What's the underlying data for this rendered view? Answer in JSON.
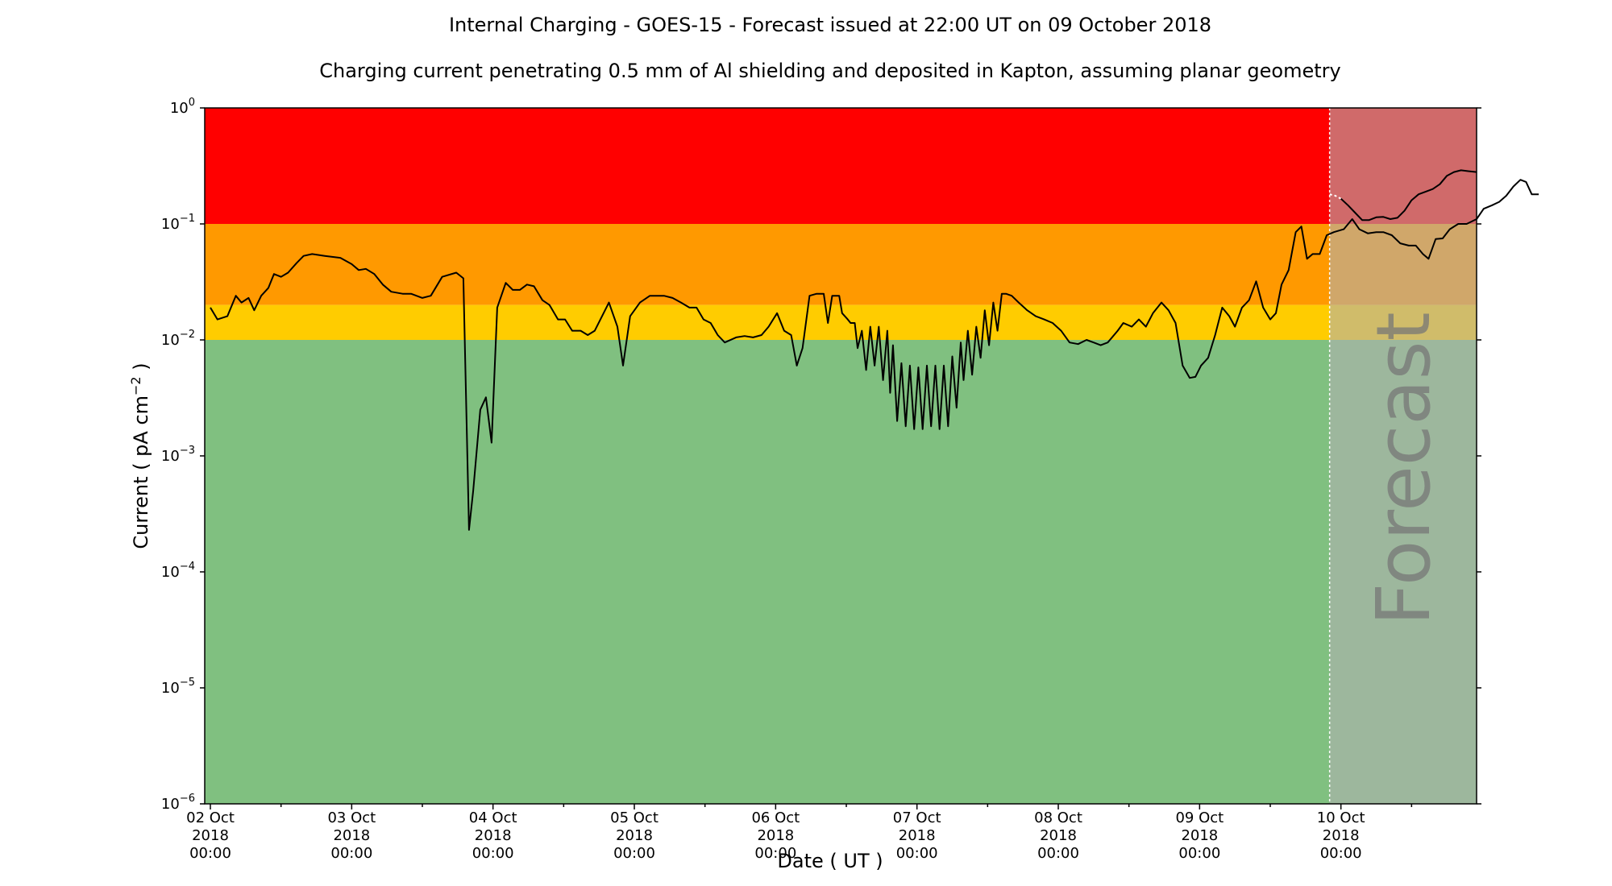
{
  "chart_data": {
    "type": "line",
    "title": "Internal Charging - GOES-15 - Forecast issued at 22:00 UT on 09 October 2018",
    "subtitle": "Charging current penetrating 0.5 mm of Al shielding and deposited in Kapton, assuming planar geometry",
    "xlabel": "Date ( UT )",
    "ylabel_main": "Current ( pA cm",
    "ylabel_exp": "−2",
    "ylabel_end": " )",
    "yscale": "log",
    "ylim": [
      1e-06,
      1
    ],
    "xlim_days": [
      -0.04,
      8.96
    ],
    "x_ticks": [
      {
        "day": 0,
        "line1": "02 Oct",
        "line2": "2018",
        "line3": "00:00"
      },
      {
        "day": 1,
        "line1": "03 Oct",
        "line2": "2018",
        "line3": "00:00"
      },
      {
        "day": 2,
        "line1": "04 Oct",
        "line2": "2018",
        "line3": "00:00"
      },
      {
        "day": 3,
        "line1": "05 Oct",
        "line2": "2018",
        "line3": "00:00"
      },
      {
        "day": 4,
        "line1": "06 Oct",
        "line2": "2018",
        "line3": "00:00"
      },
      {
        "day": 5,
        "line1": "07 Oct",
        "line2": "2018",
        "line3": "00:00"
      },
      {
        "day": 6,
        "line1": "08 Oct",
        "line2": "2018",
        "line3": "00:00"
      },
      {
        "day": 7,
        "line1": "09 Oct",
        "line2": "2018",
        "line3": "00:00"
      },
      {
        "day": 8,
        "line1": "10 Oct",
        "line2": "2018",
        "line3": "00:00"
      }
    ],
    "y_ticks": [
      {
        "value": 1,
        "exp": "0"
      },
      {
        "value": 0.1,
        "exp": "−1"
      },
      {
        "value": 0.01,
        "exp": "−2"
      },
      {
        "value": 0.001,
        "exp": "−3"
      },
      {
        "value": 0.0001,
        "exp": "−4"
      },
      {
        "value": 1e-05,
        "exp": "−5"
      },
      {
        "value": 1e-06,
        "exp": "−6"
      }
    ],
    "bands": [
      {
        "name": "red",
        "from": 0.1,
        "to": 1,
        "color": "#ff0000"
      },
      {
        "name": "orange",
        "from": 0.02,
        "to": 0.1,
        "color": "#ff9900"
      },
      {
        "name": "yellow",
        "from": 0.01,
        "to": 0.02,
        "color": "#ffcc00"
      },
      {
        "name": "green",
        "from": 1e-06,
        "to": 0.01,
        "color": "#80c080"
      }
    ],
    "forecast": {
      "start_day": 7.92,
      "label": "Forecast",
      "overlay_color": "#b0b0b0",
      "overlay_opacity": 0.6
    },
    "line_color": "#000000",
    "series": [
      {
        "values": [
          [
            0.0,
            0.019
          ],
          [
            0.05,
            0.015
          ],
          [
            0.12,
            0.016
          ],
          [
            0.18,
            0.024
          ],
          [
            0.22,
            0.021
          ],
          [
            0.27,
            0.023
          ],
          [
            0.31,
            0.018
          ],
          [
            0.36,
            0.024
          ],
          [
            0.41,
            0.028
          ],
          [
            0.45,
            0.037
          ],
          [
            0.5,
            0.035
          ],
          [
            0.55,
            0.038
          ],
          [
            0.61,
            0.046
          ],
          [
            0.66,
            0.053
          ],
          [
            0.72,
            0.055
          ],
          [
            0.81,
            0.053
          ],
          [
            0.92,
            0.051
          ],
          [
            1.0,
            0.045
          ],
          [
            1.05,
            0.04
          ],
          [
            1.1,
            0.041
          ],
          [
            1.16,
            0.037
          ],
          [
            1.22,
            0.03
          ],
          [
            1.28,
            0.026
          ],
          [
            1.36,
            0.025
          ],
          [
            1.42,
            0.025
          ],
          [
            1.5,
            0.023
          ],
          [
            1.56,
            0.024
          ],
          [
            1.64,
            0.035
          ],
          [
            1.74,
            0.038
          ],
          [
            1.79,
            0.034
          ],
          [
            1.83,
            0.00023
          ],
          [
            1.86,
            0.0005
          ],
          [
            1.91,
            0.0025
          ],
          [
            1.95,
            0.0032
          ],
          [
            1.99,
            0.0013
          ],
          [
            2.03,
            0.019
          ],
          [
            2.09,
            0.031
          ],
          [
            2.14,
            0.027
          ],
          [
            2.19,
            0.027
          ],
          [
            2.24,
            0.03
          ],
          [
            2.29,
            0.029
          ],
          [
            2.35,
            0.022
          ],
          [
            2.4,
            0.02
          ],
          [
            2.46,
            0.015
          ],
          [
            2.51,
            0.015
          ],
          [
            2.56,
            0.012
          ],
          [
            2.62,
            0.012
          ],
          [
            2.67,
            0.011
          ],
          [
            2.72,
            0.012
          ],
          [
            2.82,
            0.021
          ],
          [
            2.88,
            0.013
          ],
          [
            2.92,
            0.006
          ],
          [
            2.97,
            0.016
          ],
          [
            3.04,
            0.021
          ],
          [
            3.11,
            0.024
          ],
          [
            3.21,
            0.024
          ],
          [
            3.27,
            0.023
          ],
          [
            3.33,
            0.021
          ],
          [
            3.39,
            0.019
          ],
          [
            3.44,
            0.019
          ],
          [
            3.49,
            0.015
          ],
          [
            3.54,
            0.014
          ],
          [
            3.59,
            0.011
          ],
          [
            3.64,
            0.0095
          ],
          [
            3.72,
            0.0105
          ],
          [
            3.78,
            0.0108
          ],
          [
            3.84,
            0.0105
          ],
          [
            3.9,
            0.011
          ],
          [
            3.95,
            0.013
          ],
          [
            4.01,
            0.017
          ],
          [
            4.06,
            0.012
          ],
          [
            4.11,
            0.011
          ],
          [
            4.15,
            0.006
          ],
          [
            4.19,
            0.0085
          ],
          [
            4.24,
            0.024
          ],
          [
            4.29,
            0.025
          ],
          [
            4.34,
            0.025
          ],
          [
            4.37,
            0.014
          ],
          [
            4.4,
            0.024
          ],
          [
            4.45,
            0.024
          ],
          [
            4.47,
            0.017
          ],
          [
            4.51,
            0.015
          ],
          [
            4.53,
            0.014
          ],
          [
            4.56,
            0.014
          ],
          [
            4.58,
            0.0085
          ],
          [
            4.61,
            0.012
          ],
          [
            4.64,
            0.0055
          ],
          [
            4.67,
            0.013
          ],
          [
            4.7,
            0.006
          ],
          [
            4.73,
            0.013
          ],
          [
            4.76,
            0.0045
          ],
          [
            4.79,
            0.012
          ],
          [
            4.81,
            0.0035
          ],
          [
            4.83,
            0.009
          ],
          [
            4.86,
            0.002
          ],
          [
            4.89,
            0.0063
          ],
          [
            4.92,
            0.0018
          ],
          [
            4.95,
            0.006
          ],
          [
            4.98,
            0.0017
          ],
          [
            5.01,
            0.0058
          ],
          [
            5.04,
            0.0017
          ],
          [
            5.07,
            0.006
          ],
          [
            5.1,
            0.0018
          ],
          [
            5.13,
            0.006
          ],
          [
            5.16,
            0.0017
          ],
          [
            5.19,
            0.006
          ],
          [
            5.22,
            0.0018
          ],
          [
            5.25,
            0.0072
          ],
          [
            5.28,
            0.0026
          ],
          [
            5.31,
            0.0095
          ],
          [
            5.33,
            0.0045
          ],
          [
            5.36,
            0.012
          ],
          [
            5.39,
            0.005
          ],
          [
            5.42,
            0.013
          ],
          [
            5.45,
            0.007
          ],
          [
            5.48,
            0.018
          ],
          [
            5.51,
            0.009
          ],
          [
            5.54,
            0.021
          ],
          [
            5.57,
            0.012
          ],
          [
            5.6,
            0.025
          ],
          [
            5.63,
            0.025
          ],
          [
            5.67,
            0.024
          ],
          [
            5.72,
            0.021
          ],
          [
            5.78,
            0.018
          ],
          [
            5.84,
            0.016
          ],
          [
            5.9,
            0.015
          ],
          [
            5.96,
            0.014
          ],
          [
            6.02,
            0.012
          ],
          [
            6.08,
            0.0095
          ],
          [
            6.14,
            0.0092
          ],
          [
            6.2,
            0.01
          ],
          [
            6.25,
            0.0095
          ],
          [
            6.3,
            0.009
          ],
          [
            6.35,
            0.0095
          ],
          [
            6.42,
            0.012
          ],
          [
            6.46,
            0.014
          ],
          [
            6.52,
            0.013
          ],
          [
            6.57,
            0.015
          ],
          [
            6.62,
            0.013
          ],
          [
            6.67,
            0.017
          ],
          [
            6.73,
            0.021
          ],
          [
            6.78,
            0.018
          ],
          [
            6.83,
            0.014
          ],
          [
            6.88,
            0.006
          ],
          [
            6.93,
            0.0047
          ],
          [
            6.97,
            0.0048
          ],
          [
            7.01,
            0.006
          ],
          [
            7.06,
            0.007
          ],
          [
            7.11,
            0.011
          ],
          [
            7.16,
            0.019
          ],
          [
            7.21,
            0.016
          ],
          [
            7.25,
            0.013
          ],
          [
            7.3,
            0.019
          ],
          [
            7.35,
            0.022
          ],
          [
            7.4,
            0.032
          ],
          [
            7.45,
            0.019
          ],
          [
            7.5,
            0.015
          ],
          [
            7.54,
            0.017
          ],
          [
            7.58,
            0.03
          ],
          [
            7.63,
            0.04
          ],
          [
            7.68,
            0.085
          ],
          [
            7.72,
            0.095
          ],
          [
            7.76,
            0.05
          ],
          [
            7.8,
            0.055
          ],
          [
            7.85,
            0.055
          ],
          [
            7.9,
            0.08
          ],
          [
            7.95,
            0.085
          ],
          [
            8.02,
            0.09
          ],
          [
            8.08,
            0.11
          ],
          [
            8.13,
            0.09
          ],
          [
            8.19,
            0.083
          ],
          [
            8.25,
            0.085
          ],
          [
            8.3,
            0.085
          ],
          [
            8.36,
            0.08
          ],
          [
            8.42,
            0.068
          ],
          [
            8.48,
            0.065
          ],
          [
            8.53,
            0.065
          ],
          [
            8.58,
            0.055
          ],
          [
            8.62,
            0.05
          ],
          [
            8.67,
            0.074
          ],
          [
            8.72,
            0.075
          ],
          [
            8.77,
            0.09
          ],
          [
            8.83,
            0.1
          ],
          [
            8.89,
            0.1
          ],
          [
            8.96,
            0.11
          ],
          [
            9.01,
            0.135
          ],
          [
            9.07,
            0.145
          ],
          [
            9.12,
            0.155
          ],
          [
            9.17,
            0.175
          ],
          [
            9.22,
            0.21
          ],
          [
            9.27,
            0.24
          ],
          [
            9.31,
            0.23
          ],
          [
            9.35,
            0.18
          ],
          [
            9.4,
            0.18
          ]
        ]
      },
      {
        "dashed": true,
        "color": "#ffffff",
        "values": [
          [
            7.92,
            0.18
          ],
          [
            7.96,
            0.175
          ],
          [
            8.0,
            0.165
          ]
        ]
      },
      {
        "values": [
          [
            8.0,
            0.165
          ],
          [
            8.05,
            0.145
          ],
          [
            8.1,
            0.125
          ],
          [
            8.15,
            0.108
          ],
          [
            8.2,
            0.108
          ],
          [
            8.25,
            0.114
          ],
          [
            8.3,
            0.115
          ],
          [
            8.35,
            0.11
          ],
          [
            8.4,
            0.113
          ],
          [
            8.45,
            0.13
          ],
          [
            8.5,
            0.16
          ],
          [
            8.55,
            0.18
          ],
          [
            8.6,
            0.19
          ],
          [
            8.65,
            0.2
          ],
          [
            8.7,
            0.22
          ],
          [
            8.75,
            0.26
          ],
          [
            8.8,
            0.28
          ],
          [
            8.85,
            0.29
          ],
          [
            8.9,
            0.285
          ],
          [
            8.96,
            0.28
          ]
        ]
      }
    ]
  }
}
